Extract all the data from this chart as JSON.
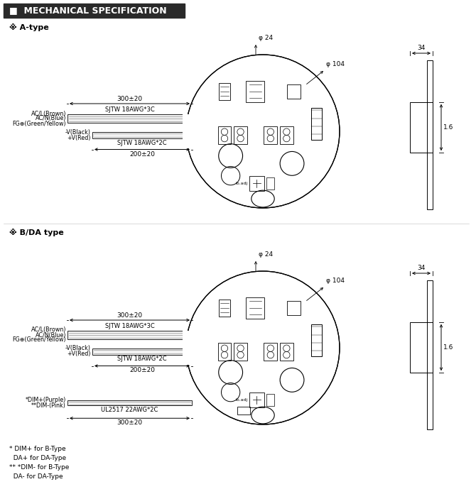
{
  "title": "MECHANICAL SPECIFICATION",
  "bg_color": "#ffffff",
  "line_color": "#000000",
  "gray_color": "#666666",
  "section_a_title": "※ A-type",
  "section_b_title": "※ B/DA type",
  "wire_3c_label": "SJTW 18AWG*3C",
  "wire_2c_label": "SJTW 18AWG*2C",
  "wire_ul_label": "UL2517 22AWG*2C",
  "dim_300": "300±20",
  "dim_200": "200±20",
  "wire_ac_labels": [
    "AC/L(Brown)",
    "AC/N(Blue)",
    "FG⊕(Green/Yellow)"
  ],
  "wire_dc_labels": [
    "-V(Black)",
    "+V(Red)"
  ],
  "wire_dim_labels": [
    "*DIM+(Purple)",
    "**DIM-(Pink)"
  ],
  "side_dim_34": "34",
  "side_dim_16": "1.6",
  "phi_24": "φ 24",
  "phi_104": "φ 104",
  "footnote_lines": [
    "* DIM+ for B-Type",
    "  DA+ for DA-Type",
    "** *DIM- for B-Type",
    "  DA- for DA-Type"
  ]
}
